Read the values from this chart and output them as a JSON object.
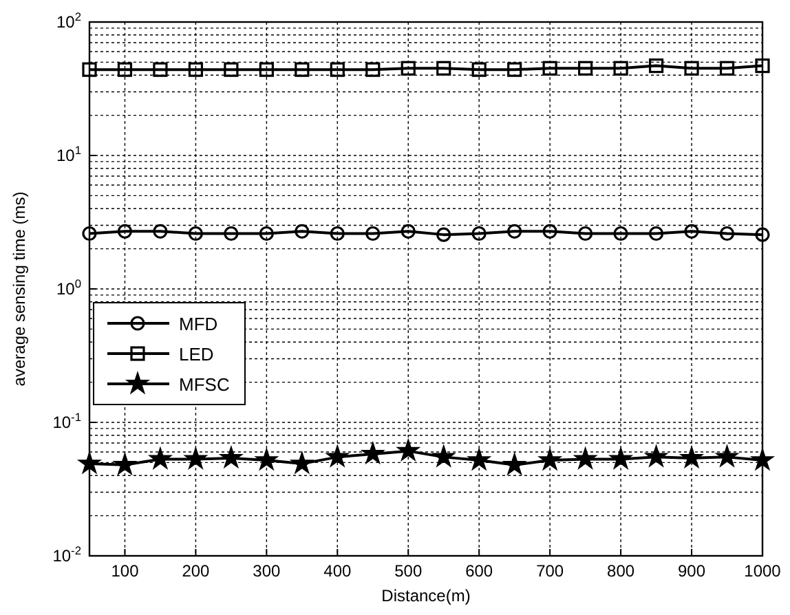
{
  "chart_data": {
    "type": "line",
    "xlabel": "Distance(m)",
    "ylabel": "average sensing time (ms)",
    "x": [
      50,
      100,
      150,
      200,
      250,
      300,
      350,
      400,
      450,
      500,
      550,
      600,
      650,
      700,
      750,
      800,
      850,
      900,
      950,
      1000
    ],
    "xlim": [
      50,
      1000
    ],
    "xticks": [
      100,
      200,
      300,
      400,
      500,
      600,
      700,
      800,
      900,
      1000
    ],
    "ylim": [
      0.01,
      100
    ],
    "yticks": [
      {
        "value": 0.01,
        "label": "10$^{-2}$"
      },
      {
        "value": 0.1,
        "label": "10$^{-1}$"
      },
      {
        "value": 1,
        "label": "10$^{0}$"
      },
      {
        "value": 10,
        "label": "10$^{1}$"
      },
      {
        "value": 100,
        "label": "10$^{2}$"
      }
    ],
    "log": "y",
    "grid": true,
    "legend": "left",
    "line_style": "solid",
    "series": [
      {
        "name": "MFD",
        "color": "#000000",
        "marker": "circle",
        "values": [
          2.6,
          2.7,
          2.7,
          2.6,
          2.6,
          2.6,
          2.7,
          2.6,
          2.6,
          2.7,
          2.55,
          2.6,
          2.7,
          2.7,
          2.6,
          2.6,
          2.6,
          2.7,
          2.6,
          2.55
        ]
      },
      {
        "name": "LED",
        "color": "#000000",
        "marker": "square",
        "values": [
          44,
          44,
          44,
          44,
          44,
          44,
          44,
          44,
          44,
          45,
          45,
          44,
          44,
          45,
          45,
          45,
          47,
          45,
          45,
          47
        ]
      },
      {
        "name": "MFSC",
        "color": "#000000",
        "marker": "star",
        "values": [
          0.049,
          0.048,
          0.053,
          0.053,
          0.054,
          0.052,
          0.049,
          0.055,
          0.058,
          0.061,
          0.055,
          0.052,
          0.048,
          0.052,
          0.053,
          0.053,
          0.055,
          0.054,
          0.055,
          0.052
        ]
      }
    ]
  }
}
